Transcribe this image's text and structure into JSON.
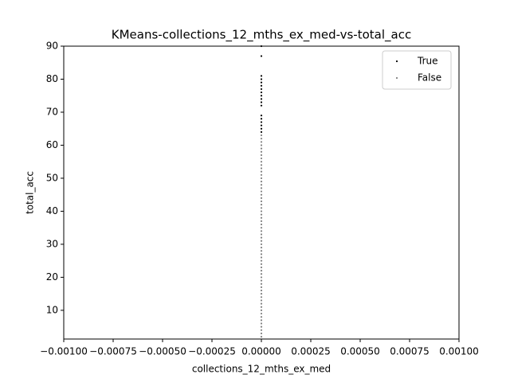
{
  "chart_data": {
    "type": "scatter",
    "title": "KMeans-collections_12_mths_ex_med-vs-total_acc",
    "x_label": "collections_12_mths_ex_med",
    "y_label": "total_acc",
    "xlim": [
      -0.001,
      0.001
    ],
    "xticks": [
      {
        "value": -0.001,
        "label": "−0.00100"
      },
      {
        "value": -0.00075,
        "label": "−0.00075"
      },
      {
        "value": -0.0005,
        "label": "−0.00050"
      },
      {
        "value": -0.00025,
        "label": "−0.00025"
      },
      {
        "value": 0,
        "label": "0.00000"
      },
      0.00025,
      {
        "value": 0.0005,
        "label": "0.00050"
      },
      0.00075,
      {
        "value": 0.001,
        "label": "0.00100"
      }
    ],
    "ylim": [
      1.3,
      90
    ],
    "yticks": [
      10,
      20,
      30,
      40,
      50,
      60,
      70,
      80,
      90
    ],
    "legend": "upper-right",
    "series": [
      {
        "name": "True",
        "color": "#000000",
        "x": [
          0,
          0,
          0,
          0,
          0,
          0,
          0,
          0,
          0,
          0,
          0,
          0,
          0,
          0,
          0,
          0,
          0,
          0
        ],
        "values": [
          90,
          87,
          81,
          80,
          79,
          78,
          77,
          76,
          75,
          74,
          73,
          72,
          69,
          68,
          67,
          66,
          65,
          64
        ]
      },
      {
        "name": "False",
        "color": "#808080",
        "x": [
          0,
          0,
          0,
          0,
          0,
          0,
          0,
          0,
          0,
          0,
          0,
          0,
          0,
          0,
          0,
          0,
          0,
          0,
          0,
          0,
          0,
          0,
          0,
          0,
          0,
          0,
          0,
          0,
          0,
          0,
          0,
          0,
          0,
          0,
          0,
          0,
          0,
          0,
          0,
          0,
          0,
          0,
          0,
          0,
          0,
          0,
          0,
          0,
          0,
          0,
          0,
          0,
          0,
          0,
          0,
          0,
          0,
          0,
          0,
          0,
          0,
          0
        ],
        "values": [
          2,
          3,
          4,
          5,
          6,
          7,
          8,
          9,
          10,
          11,
          12,
          13,
          14,
          15,
          16,
          17,
          18,
          19,
          20,
          21,
          22,
          23,
          24,
          25,
          26,
          27,
          28,
          29,
          30,
          31,
          32,
          33,
          34,
          35,
          36,
          37,
          38,
          39,
          40,
          41,
          42,
          43,
          44,
          45,
          46,
          47,
          48,
          49,
          50,
          51,
          52,
          53,
          54,
          55,
          56,
          57,
          58,
          59,
          60,
          61,
          62,
          63
        ]
      }
    ]
  }
}
